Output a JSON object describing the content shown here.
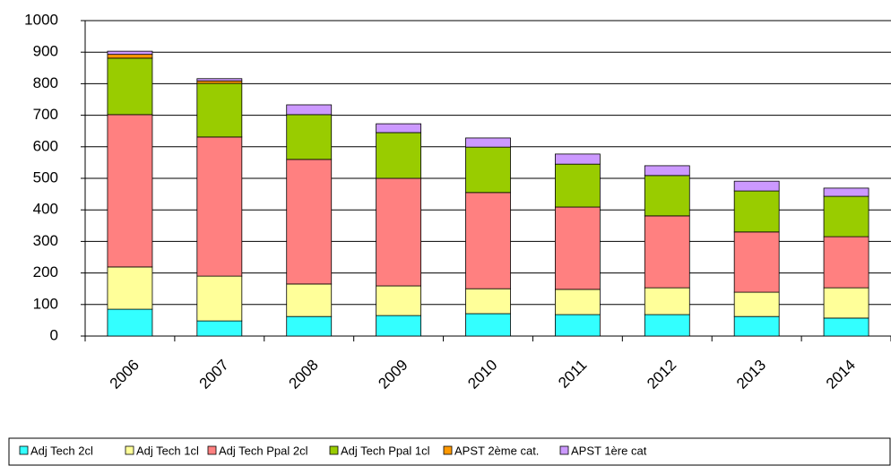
{
  "chart_data": {
    "type": "stacked_bar",
    "categories": [
      "2006",
      "2007",
      "2008",
      "2009",
      "2010",
      "2011",
      "2012",
      "2013",
      "2014"
    ],
    "series": [
      {
        "name": "Adj Tech 2cl",
        "color": "#33ffff",
        "values": [
          85,
          48,
          62,
          65,
          71,
          68,
          68,
          62,
          57
        ]
      },
      {
        "name": "Adj Tech 1cl",
        "color": "#ffff99",
        "values": [
          134,
          142,
          103,
          94,
          79,
          80,
          85,
          77,
          96
        ]
      },
      {
        "name": "Adj Tech Ppal 2cl",
        "color": "#ff8080",
        "values": [
          483,
          441,
          395,
          341,
          305,
          261,
          228,
          191,
          162
        ]
      },
      {
        "name": "Adj Tech Ppal 1cl",
        "color": "#99cc00",
        "values": [
          179,
          170,
          142,
          145,
          144,
          136,
          128,
          130,
          128
        ]
      },
      {
        "name": "APST 2ème cat.",
        "color": "#ff9900",
        "values": [
          12,
          8,
          0,
          0,
          0,
          0,
          0,
          0,
          0
        ]
      },
      {
        "name": "APST 1ère cat",
        "color": "#cc99ff",
        "values": [
          10,
          7,
          31,
          28,
          29,
          32,
          31,
          31,
          26
        ]
      }
    ],
    "ylim": [
      0,
      1000
    ],
    "yticks": [
      0,
      100,
      200,
      300,
      400,
      500,
      600,
      700,
      800,
      900,
      1000
    ],
    "grid": true,
    "legend": "bottom"
  }
}
